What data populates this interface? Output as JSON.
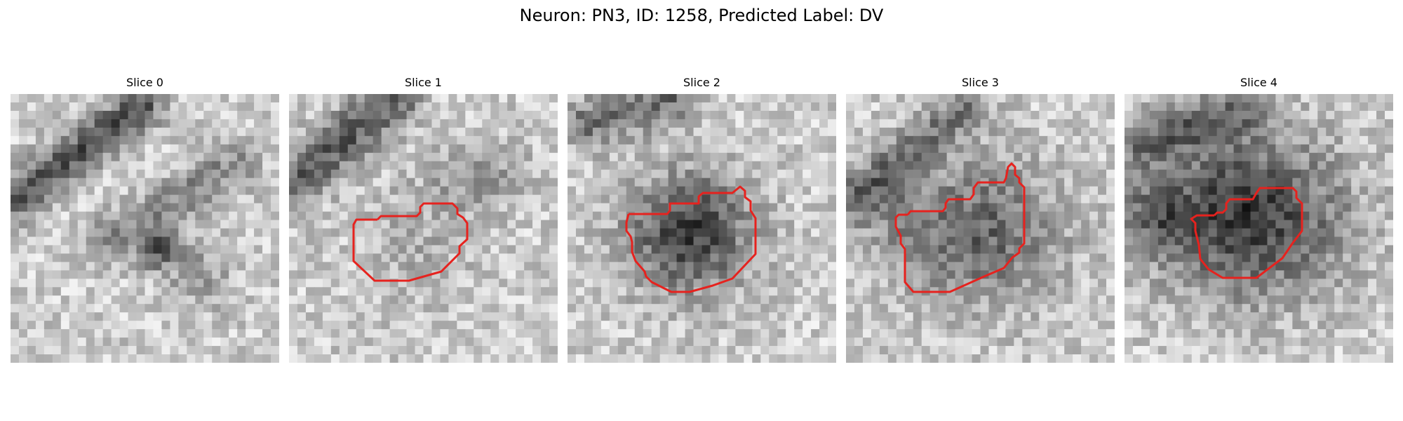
{
  "figure": {
    "title": "Neuron: PN3, ID: 1258, Predicted Label: DV"
  },
  "panels": [
    {
      "title": "Slice 0",
      "has_contour": false
    },
    {
      "title": "Slice 1",
      "has_contour": true
    },
    {
      "title": "Slice 2",
      "has_contour": true
    },
    {
      "title": "Slice 3",
      "has_contour": true
    },
    {
      "title": "Slice 4",
      "has_contour": true
    }
  ],
  "colors": {
    "contour": "#e6221e",
    "colormap": "grayscale"
  }
}
